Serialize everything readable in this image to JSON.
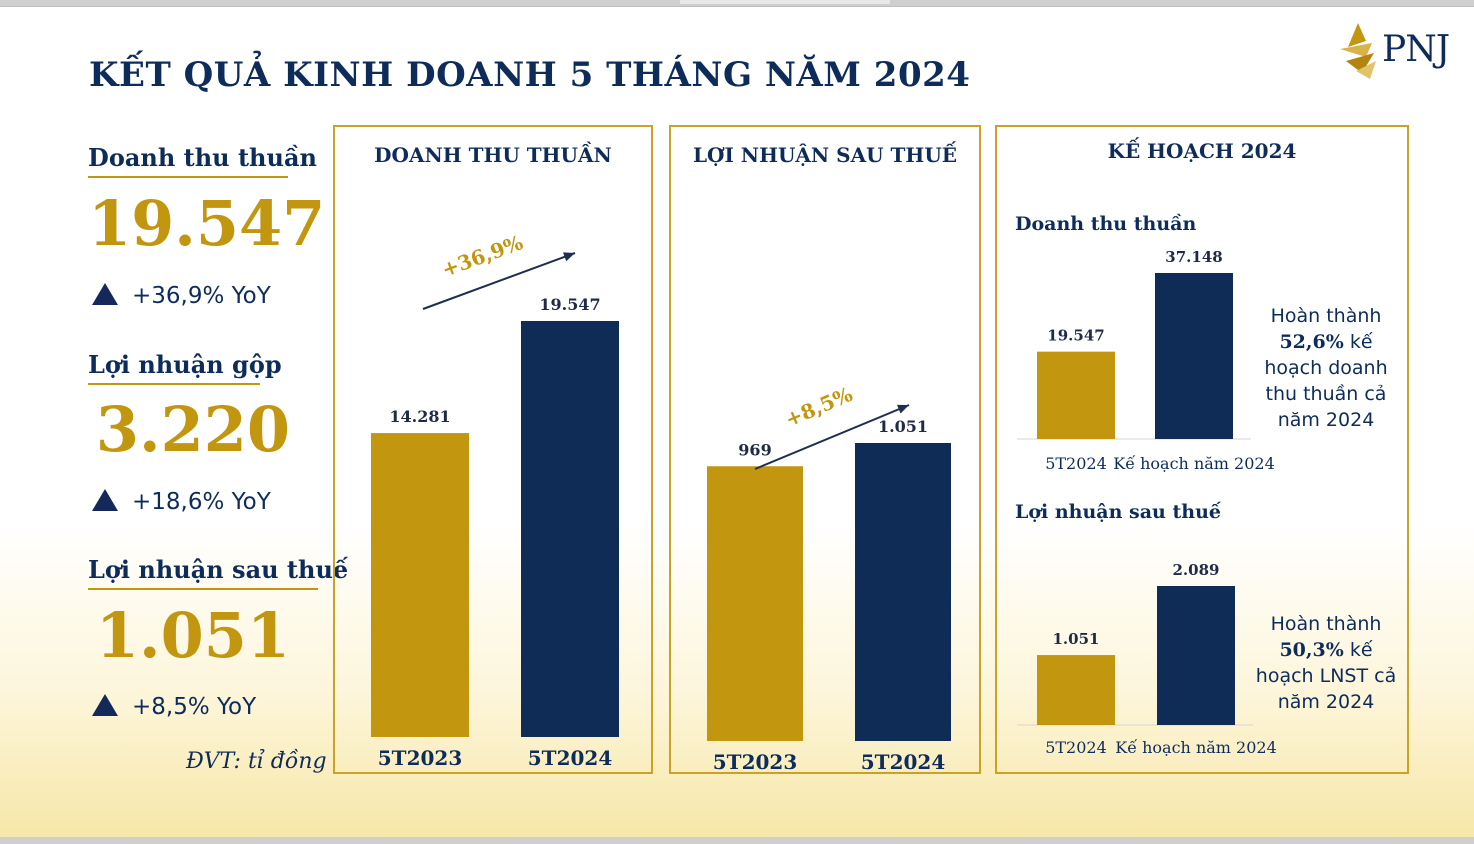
{
  "title": "KẾT QUẢ KINH DOANH 5 THÁNG NĂM 2024",
  "logo": {
    "text": "PNJ",
    "icon": "pnj-logo-icon"
  },
  "kpis": [
    {
      "label": "Doanh thu thuần",
      "value": "19.547",
      "yoy": "+36,9% YoY"
    },
    {
      "label": "Lợi nhuận gộp",
      "value": "3.220",
      "yoy": "+18,6% YoY"
    },
    {
      "label": "Lợi nhuận sau thuế",
      "value": "1.051",
      "yoy": "+8,5% YoY"
    }
  ],
  "unit_note": "ĐVT: tỉ đồng",
  "colors": {
    "gold": "#c2960f",
    "navy": "#0e2c5a",
    "navy_bar": "#0e2c55",
    "border": "#c9a227"
  },
  "panels": {
    "revenue": {
      "title": "DOANH THU THUẦN",
      "growth": "+36,9%"
    },
    "profit": {
      "title": "LỢI NHUẬN SAU THUẾ",
      "growth": "+8,5%"
    },
    "plan": {
      "title": "KẾ HOẠCH 2024",
      "revenue_title": "Doanh thu thuần",
      "profit_title": "Lợi nhuận sau thuế",
      "revenue_note": {
        "line1": "Hoàn thành",
        "pct": "52,6%",
        "rest": "kế hoạch doanh thu thuần cả năm 2024"
      },
      "profit_note": {
        "line1": "Hoàn thành",
        "pct": "50,3%",
        "rest": "kế hoạch LNST cả năm 2024"
      }
    }
  },
  "chart_data": [
    {
      "type": "bar",
      "title": "DOANH THU THUẦN",
      "categories": [
        "5T2023",
        "5T2024"
      ],
      "values": [
        14281,
        19547
      ],
      "labels": [
        "14.281",
        "19.547"
      ],
      "ylim": [
        0,
        20000
      ],
      "annotation": "+36,9%"
    },
    {
      "type": "bar",
      "title": "LỢI NHUẬN SAU THUẾ",
      "categories": [
        "5T2023",
        "5T2024"
      ],
      "values": [
        969,
        1051
      ],
      "labels": [
        "969",
        "1.051"
      ],
      "ylim": [
        0,
        1250
      ],
      "annotation": "+8,5%"
    },
    {
      "type": "bar",
      "title": "Doanh thu thuần",
      "categories": [
        "5T2024",
        "Kế hoạch năm 2024"
      ],
      "values": [
        19547,
        37148
      ],
      "labels": [
        "19.547",
        "37.148"
      ],
      "ylim": [
        0,
        41000
      ]
    },
    {
      "type": "bar",
      "title": "Lợi nhuận sau thuế",
      "categories": [
        "5T2024",
        "Kế hoạch năm 2024"
      ],
      "values": [
        1051,
        2089
      ],
      "labels": [
        "1.051",
        "2.089"
      ],
      "ylim": [
        0,
        2300
      ]
    }
  ]
}
